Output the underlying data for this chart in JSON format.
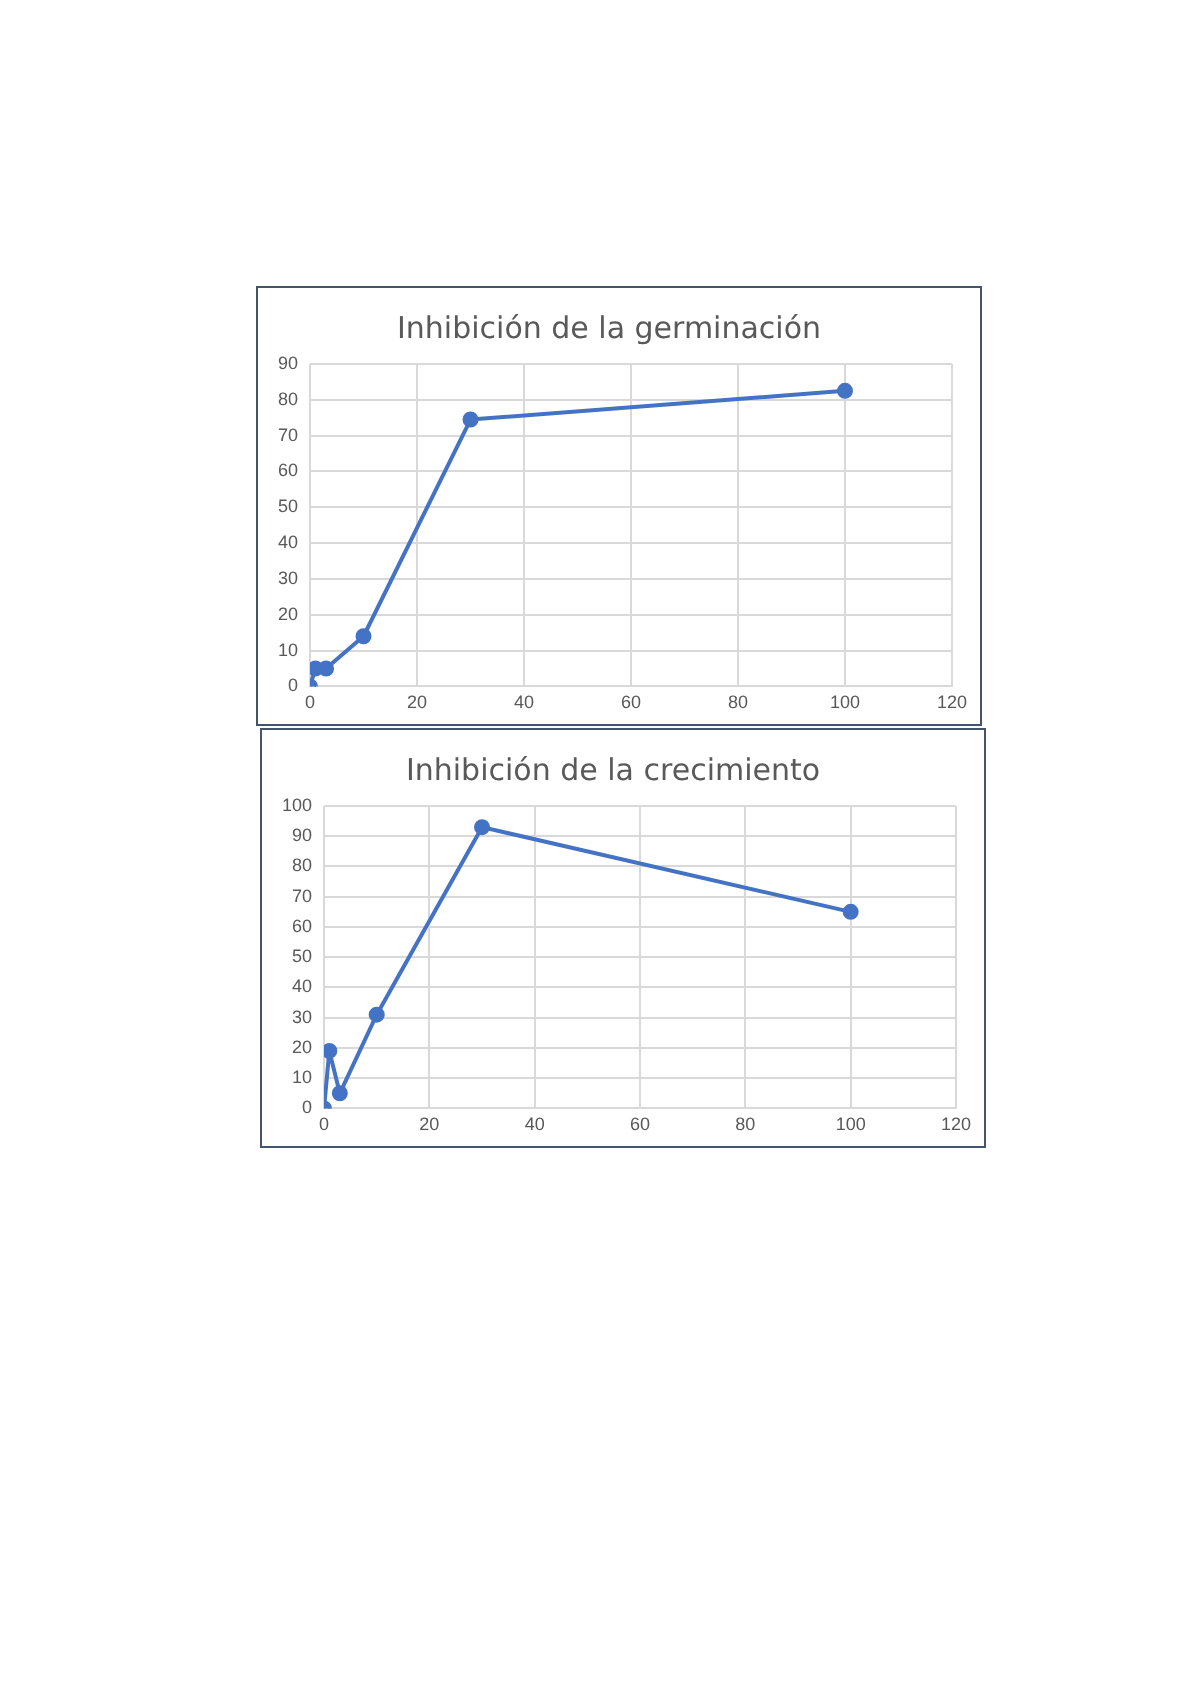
{
  "chart_data": [
    {
      "type": "line",
      "title": "Inhibición de la germinación",
      "x": [
        0,
        1,
        3,
        10,
        30,
        100
      ],
      "series": [
        {
          "color": "#4472c4",
          "values": [
            0,
            5,
            5,
            14,
            74.5,
            82.5
          ]
        }
      ],
      "xlim": [
        0,
        120
      ],
      "xticks": [
        0,
        20,
        40,
        60,
        80,
        100,
        120
      ],
      "ylim": [
        0,
        90
      ],
      "yticks": [
        0,
        10,
        20,
        30,
        40,
        50,
        60,
        70,
        80,
        90
      ],
      "grid": true,
      "legend": false,
      "marker": "circle",
      "line_style": "solid"
    },
    {
      "type": "line",
      "title": "Inhibición de la crecimiento",
      "x": [
        0,
        1,
        3,
        10,
        30,
        100
      ],
      "series": [
        {
          "color": "#4472c4",
          "values": [
            0,
            19,
            5,
            31,
            93,
            65
          ]
        }
      ],
      "xlim": [
        0,
        120
      ],
      "xticks": [
        0,
        20,
        40,
        60,
        80,
        100,
        120
      ],
      "ylim": [
        0,
        100
      ],
      "yticks": [
        0,
        10,
        20,
        30,
        40,
        50,
        60,
        70,
        80,
        90,
        100
      ],
      "grid": true,
      "legend": false,
      "marker": "circle",
      "line_style": "solid"
    }
  ]
}
